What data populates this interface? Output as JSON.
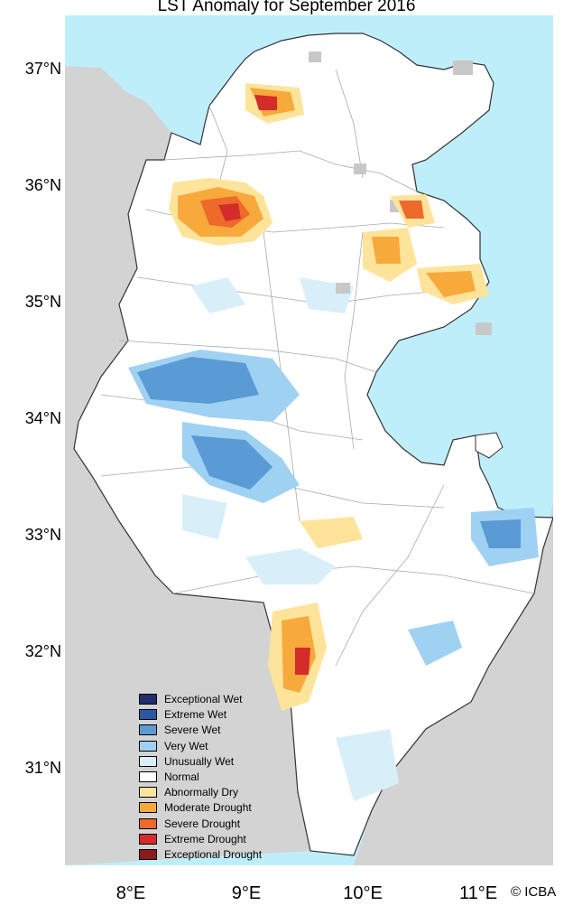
{
  "title": "LST Anomaly for September 2016",
  "credit": "© ICBA",
  "latitude_labels": [
    "37°N",
    "36°N",
    "35°N",
    "34°N",
    "33°N",
    "32°N",
    "31°N"
  ],
  "longitude_labels": [
    "8°E",
    "9°E",
    "10°E",
    "11°E"
  ],
  "colors": {
    "sea": "#bfeefb",
    "land_outside": "#d3d3d3",
    "country": "#ffffff",
    "no_data": "#c8c8c8",
    "border": "#333333",
    "admin_lines": "#a9a9a9"
  },
  "legend": [
    {
      "label": "Exceptional Wet",
      "color": "#1f2f6b"
    },
    {
      "label": "Extreme Wet",
      "color": "#2b58a4"
    },
    {
      "label": "Severe Wet",
      "color": "#5a9bd5"
    },
    {
      "label": "Very Wet",
      "color": "#9fd1f2"
    },
    {
      "label": "Unusually Wet",
      "color": "#d8effa"
    },
    {
      "label": "Normal",
      "color": "#ffffff"
    },
    {
      "label": "Abnormally Dry",
      "color": "#fde49a"
    },
    {
      "label": "Moderate Drought",
      "color": "#f7a93c"
    },
    {
      "label": "Severe Drought",
      "color": "#ee6a2a"
    },
    {
      "label": "Extreme Drought",
      "color": "#d42b2b"
    },
    {
      "label": "Exceptional Drought",
      "color": "#8b1a1a"
    }
  ]
}
